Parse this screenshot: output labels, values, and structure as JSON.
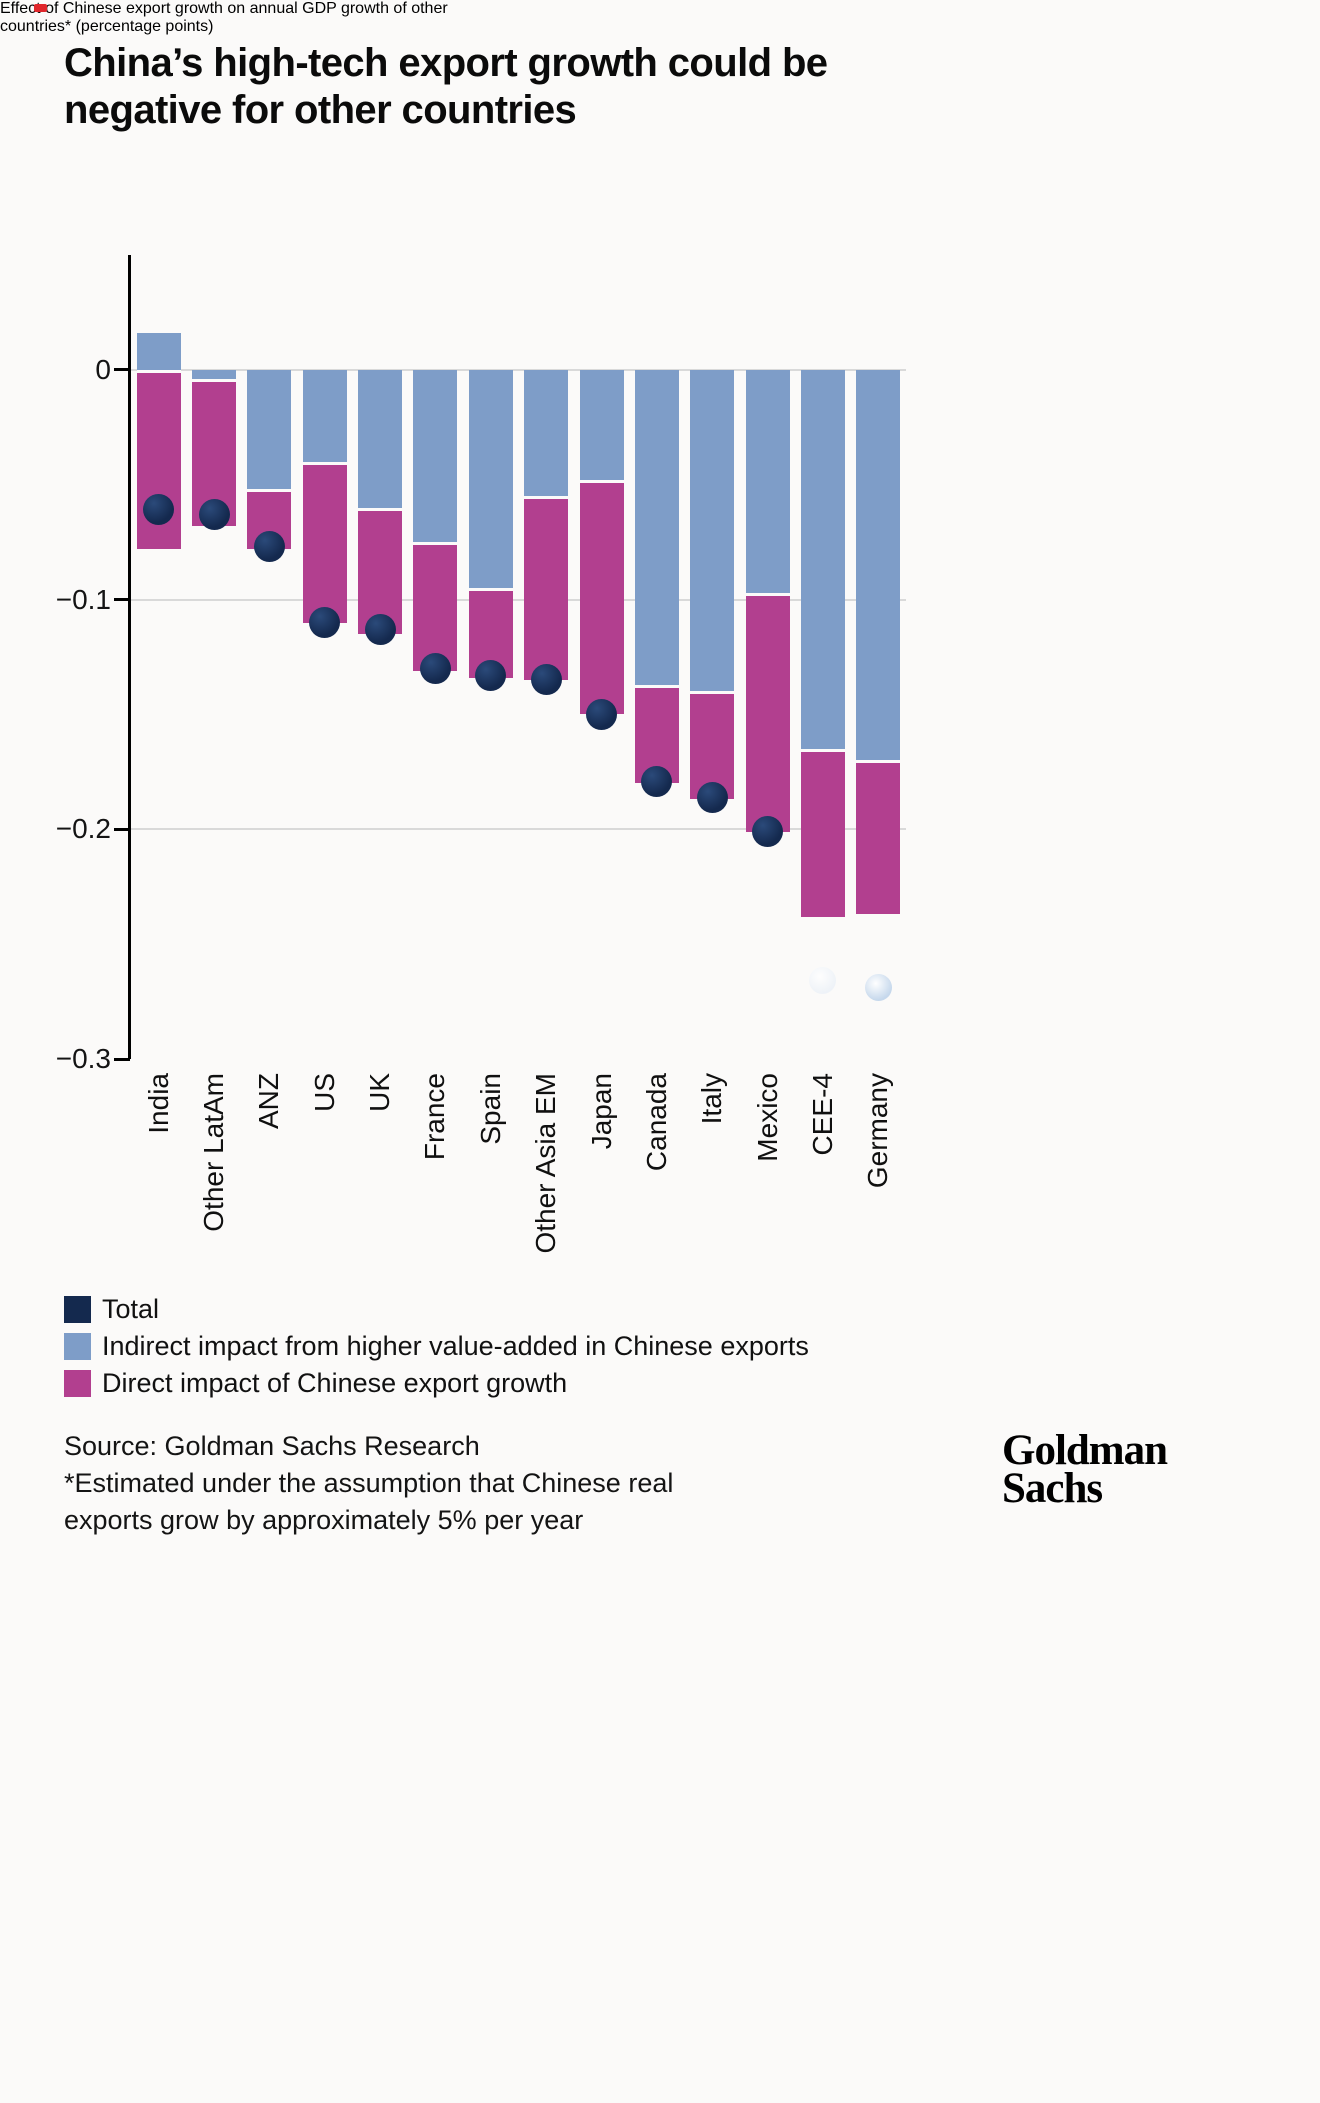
{
  "artifact": {
    "color": "#e0262b"
  },
  "title": {
    "lines": [
      "China’s high-tech export growth could be",
      "negative for other countries"
    ]
  },
  "subtitle": {
    "lines": [
      "Effect of Chinese export growth on annual GDP growth of other",
      "countries* (percentage points)"
    ]
  },
  "legend": {
    "items": [
      {
        "label": "Total",
        "color": "#14294e"
      },
      {
        "label": "Indirect impact from higher value-added in Chinese exports",
        "color": "#7e9dc8"
      },
      {
        "label": "Direct impact of Chinese export growth",
        "color": "#b23f8f"
      }
    ]
  },
  "source": {
    "lines": [
      "Source: Goldman Sachs Research",
      "*Estimated under the assumption that Chinese real",
      "exports grow by approximately 5% per year"
    ]
  },
  "logo": {
    "lines": [
      "Goldman",
      "Sachs"
    ]
  },
  "chart_data": {
    "type": "bar",
    "stacked": true,
    "title": "China’s high-tech export growth could be negative for other countries",
    "subtitle": "Effect of Chinese export growth on annual GDP growth of other countries* (percentage points)",
    "categories": [
      "India",
      "Other LatAm",
      "ANZ",
      "US",
      "UK",
      "France",
      "Spain",
      "Other Asia EM",
      "Japan",
      "Canada",
      "Italy",
      "Mexico",
      "CEE-4",
      "Germany"
    ],
    "series": [
      {
        "name": "Indirect impact from higher value-added in Chinese exports",
        "color": "#7e9dc8",
        "values": [
          0.016,
          -0.004,
          -0.052,
          -0.04,
          -0.06,
          -0.075,
          -0.095,
          -0.055,
          -0.048,
          -0.137,
          -0.14,
          -0.097,
          -0.165,
          -0.17
        ]
      },
      {
        "name": "Direct impact of Chinese export growth",
        "color": "#b23f8f",
        "values": [
          -0.078,
          -0.064,
          -0.026,
          -0.07,
          -0.055,
          -0.056,
          -0.039,
          -0.08,
          -0.102,
          -0.043,
          -0.047,
          -0.104,
          -0.073,
          -0.067
        ]
      }
    ],
    "totals": {
      "name": "Total",
      "color": "#14294e",
      "values": [
        -0.061,
        -0.063,
        -0.077,
        -0.11,
        -0.113,
        -0.13,
        -0.133,
        -0.135,
        -0.15,
        -0.179,
        -0.186,
        -0.201,
        -0.266,
        -0.269
      ],
      "ghost_indices": [
        12,
        13
      ],
      "ghost_colors": [
        "#eaf0f7",
        "#c6d8ec"
      ]
    },
    "ylim": [
      0.05,
      -0.3
    ],
    "yticks": [
      0,
      -0.1,
      -0.2,
      -0.3
    ],
    "ytick_labels": [
      "0",
      "−0.1",
      "−0.2",
      "−0.3"
    ],
    "grid_values": [
      0,
      -0.1,
      -0.2
    ],
    "gridline_color": "#d9d9d9",
    "xlabel": "",
    "ylabel": "",
    "legend_position": "bottom"
  }
}
